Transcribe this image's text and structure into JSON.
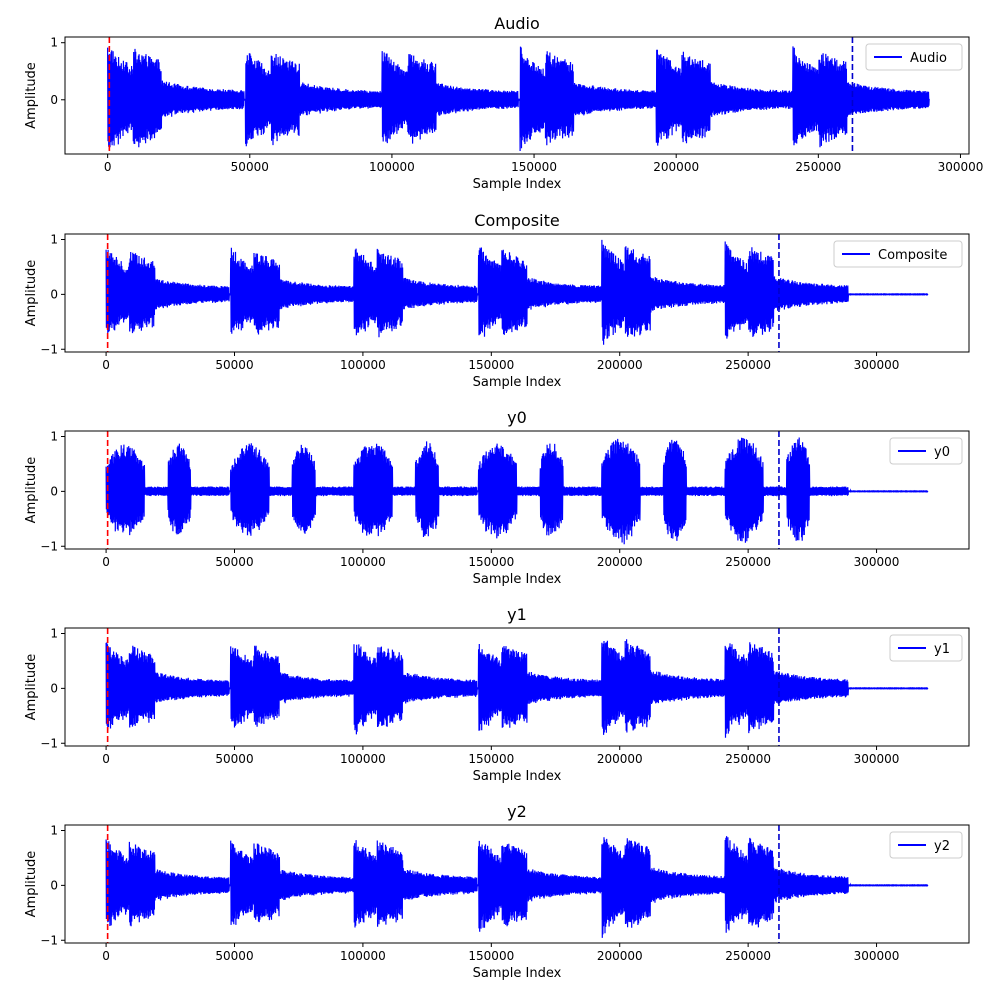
{
  "figure": {
    "colors": {
      "signal": "#0000ff",
      "start_marker": "#ff0000",
      "end_marker": "#0000cc"
    }
  },
  "chart_data": [
    {
      "type": "line",
      "title": "Audio",
      "xlabel": "Sample Index",
      "ylabel": "Amplitude",
      "legend": {
        "entries": [
          "Audio"
        ],
        "placement": "top-right"
      },
      "xlim": [
        -15000,
        303000
      ],
      "ylim": [
        -0.95,
        1.1
      ],
      "xticks": [
        0,
        50000,
        100000,
        150000,
        200000,
        250000,
        300000
      ],
      "yticks": [
        0,
        1
      ],
      "signal_length": 289000,
      "bursts": [
        {
          "start": 0,
          "peak": 1.0
        },
        {
          "start": 48500,
          "peak": 0.92
        },
        {
          "start": 96500,
          "peak": 0.92
        },
        {
          "start": 145000,
          "peak": 0.95
        },
        {
          "start": 193000,
          "peak": 0.95
        },
        {
          "start": 241000,
          "peak": 0.95
        }
      ],
      "vlines": [
        {
          "x": 600,
          "color": "red",
          "style": "dashed"
        },
        {
          "x": 262000,
          "color": "blue",
          "style": "dashed"
        }
      ],
      "grid": false
    },
    {
      "type": "line",
      "title": "Composite",
      "xlabel": "Sample Index",
      "ylabel": "Amplitude",
      "legend": {
        "entries": [
          "Composite"
        ],
        "placement": "top-right"
      },
      "xlim": [
        -16000,
        336000
      ],
      "ylim": [
        -1.05,
        1.1
      ],
      "xticks": [
        0,
        50000,
        100000,
        150000,
        200000,
        250000,
        300000
      ],
      "yticks": [
        -1,
        0,
        1
      ],
      "signal_length": 320000,
      "bursts": [
        {
          "start": 0,
          "peak": 0.88
        },
        {
          "start": 48500,
          "peak": 0.88
        },
        {
          "start": 96500,
          "peak": 0.92
        },
        {
          "start": 145000,
          "peak": 0.92
        },
        {
          "start": 193000,
          "peak": 1.0
        },
        {
          "start": 241000,
          "peak": 0.98
        }
      ],
      "vlines": [
        {
          "x": 600,
          "color": "red",
          "style": "dashed"
        },
        {
          "x": 262000,
          "color": "blue",
          "style": "dashed"
        }
      ],
      "grid": false
    },
    {
      "type": "line",
      "title": "y0",
      "xlabel": "Sample Index",
      "ylabel": "Amplitude",
      "legend": {
        "entries": [
          "y0"
        ],
        "placement": "top-right"
      },
      "xlim": [
        -16000,
        336000
      ],
      "ylim": [
        -1.05,
        1.1
      ],
      "xticks": [
        0,
        50000,
        100000,
        150000,
        200000,
        250000,
        300000
      ],
      "yticks": [
        -1,
        0,
        1
      ],
      "signal_length": 320000,
      "bursts": [
        {
          "start": 0,
          "peak": 0.88
        },
        {
          "start": 48500,
          "peak": 0.88
        },
        {
          "start": 96500,
          "peak": 0.92
        },
        {
          "start": 145000,
          "peak": 0.92
        },
        {
          "start": 193000,
          "peak": 1.0
        },
        {
          "start": 241000,
          "peak": 1.0
        }
      ],
      "vlines": [
        {
          "x": 600,
          "color": "red",
          "style": "dashed"
        },
        {
          "x": 262000,
          "color": "blue",
          "style": "dashed"
        }
      ],
      "grid": false
    },
    {
      "type": "line",
      "title": "y1",
      "xlabel": "Sample Index",
      "ylabel": "Amplitude",
      "legend": {
        "entries": [
          "y1"
        ],
        "placement": "top-right"
      },
      "xlim": [
        -16000,
        336000
      ],
      "ylim": [
        -1.05,
        1.1
      ],
      "xticks": [
        0,
        50000,
        100000,
        150000,
        200000,
        250000,
        300000
      ],
      "yticks": [
        -1,
        0,
        1
      ],
      "signal_length": 320000,
      "bursts": [
        {
          "start": 0,
          "peak": 0.88
        },
        {
          "start": 48500,
          "peak": 0.88
        },
        {
          "start": 96500,
          "peak": 0.92
        },
        {
          "start": 145000,
          "peak": 0.92
        },
        {
          "start": 193000,
          "peak": 1.0
        },
        {
          "start": 241000,
          "peak": 0.98
        }
      ],
      "vlines": [
        {
          "x": 600,
          "color": "red",
          "style": "dashed"
        },
        {
          "x": 262000,
          "color": "blue",
          "style": "dashed"
        }
      ],
      "grid": false
    },
    {
      "type": "line",
      "title": "y2",
      "xlabel": "Sample Index",
      "ylabel": "Amplitude",
      "legend": {
        "entries": [
          "y2"
        ],
        "placement": "top-right"
      },
      "xlim": [
        -16000,
        336000
      ],
      "ylim": [
        -1.05,
        1.1
      ],
      "xticks": [
        0,
        50000,
        100000,
        150000,
        200000,
        250000,
        300000
      ],
      "yticks": [
        -1,
        0,
        1
      ],
      "signal_length": 320000,
      "bursts": [
        {
          "start": 0,
          "peak": 0.88
        },
        {
          "start": 48500,
          "peak": 0.88
        },
        {
          "start": 96500,
          "peak": 0.92
        },
        {
          "start": 145000,
          "peak": 0.92
        },
        {
          "start": 193000,
          "peak": 1.0
        },
        {
          "start": 241000,
          "peak": 0.98
        }
      ],
      "vlines": [
        {
          "x": 600,
          "color": "red",
          "style": "dashed"
        },
        {
          "x": 262000,
          "color": "blue",
          "style": "dashed"
        }
      ],
      "grid": false
    }
  ]
}
